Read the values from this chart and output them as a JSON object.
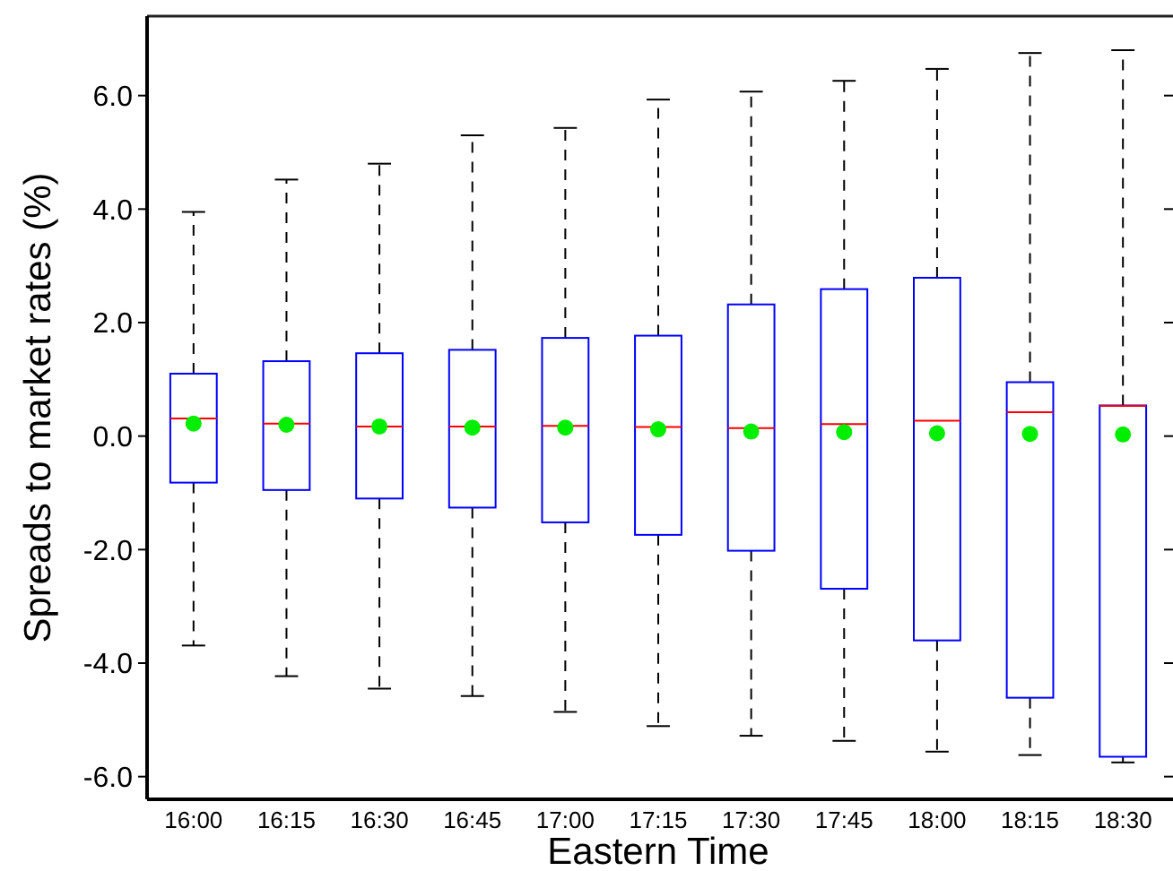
{
  "chart_data": {
    "type": "box",
    "xlabel": "Eastern Time",
    "ylabel": "Spreads to market rates (%)",
    "categories": [
      "16:00",
      "16:15",
      "16:30",
      "16:45",
      "17:00",
      "17:15",
      "17:30",
      "17:45",
      "18:00",
      "18:15",
      "18:30"
    ],
    "ylim": [
      -6.4,
      7.4
    ],
    "yticks": [
      {
        "value": -6,
        "label": "-6.0"
      },
      {
        "value": -4,
        "label": "-4.0"
      },
      {
        "value": -2,
        "label": "-2.0"
      },
      {
        "value": 0,
        "label": "0.0"
      },
      {
        "value": 2,
        "label": "2.0"
      },
      {
        "value": 4,
        "label": "4.0"
      },
      {
        "value": 6,
        "label": "6.0"
      }
    ],
    "series": [
      {
        "color": "#0000ff",
        "boxes": [
          {
            "low": -3.69,
            "q1": -0.82,
            "median": 0.31,
            "q3": 1.1,
            "high": 3.95,
            "mean": 0.22
          },
          {
            "low": -4.23,
            "q1": -0.95,
            "median": 0.22,
            "q3": 1.32,
            "high": 4.52,
            "mean": 0.2
          },
          {
            "low": -4.45,
            "q1": -1.1,
            "median": 0.17,
            "q3": 1.46,
            "high": 4.8,
            "mean": 0.17
          },
          {
            "low": -4.58,
            "q1": -1.26,
            "median": 0.17,
            "q3": 1.52,
            "high": 5.3,
            "mean": 0.15
          },
          {
            "low": -4.86,
            "q1": -1.52,
            "median": 0.18,
            "q3": 1.73,
            "high": 5.43,
            "mean": 0.15
          },
          {
            "low": -5.11,
            "q1": -1.74,
            "median": 0.16,
            "q3": 1.77,
            "high": 5.93,
            "mean": 0.12
          },
          {
            "low": -5.28,
            "q1": -2.02,
            "median": 0.14,
            "q3": 2.32,
            "high": 6.07,
            "mean": 0.08
          },
          {
            "low": -5.37,
            "q1": -2.69,
            "median": 0.21,
            "q3": 2.59,
            "high": 6.26,
            "mean": 0.07
          },
          {
            "low": -5.56,
            "q1": -3.6,
            "median": 0.27,
            "q3": 2.79,
            "high": 6.47,
            "mean": 0.05
          },
          {
            "low": -5.62,
            "q1": -4.61,
            "median": 0.42,
            "q3": 0.95,
            "high": 6.75,
            "mean": 0.04
          },
          {
            "low": -5.75,
            "q1": -5.65,
            "median": 0.53,
            "q3": 0.54,
            "high": 6.8,
            "mean": 0.03
          }
        ]
      }
    ]
  }
}
